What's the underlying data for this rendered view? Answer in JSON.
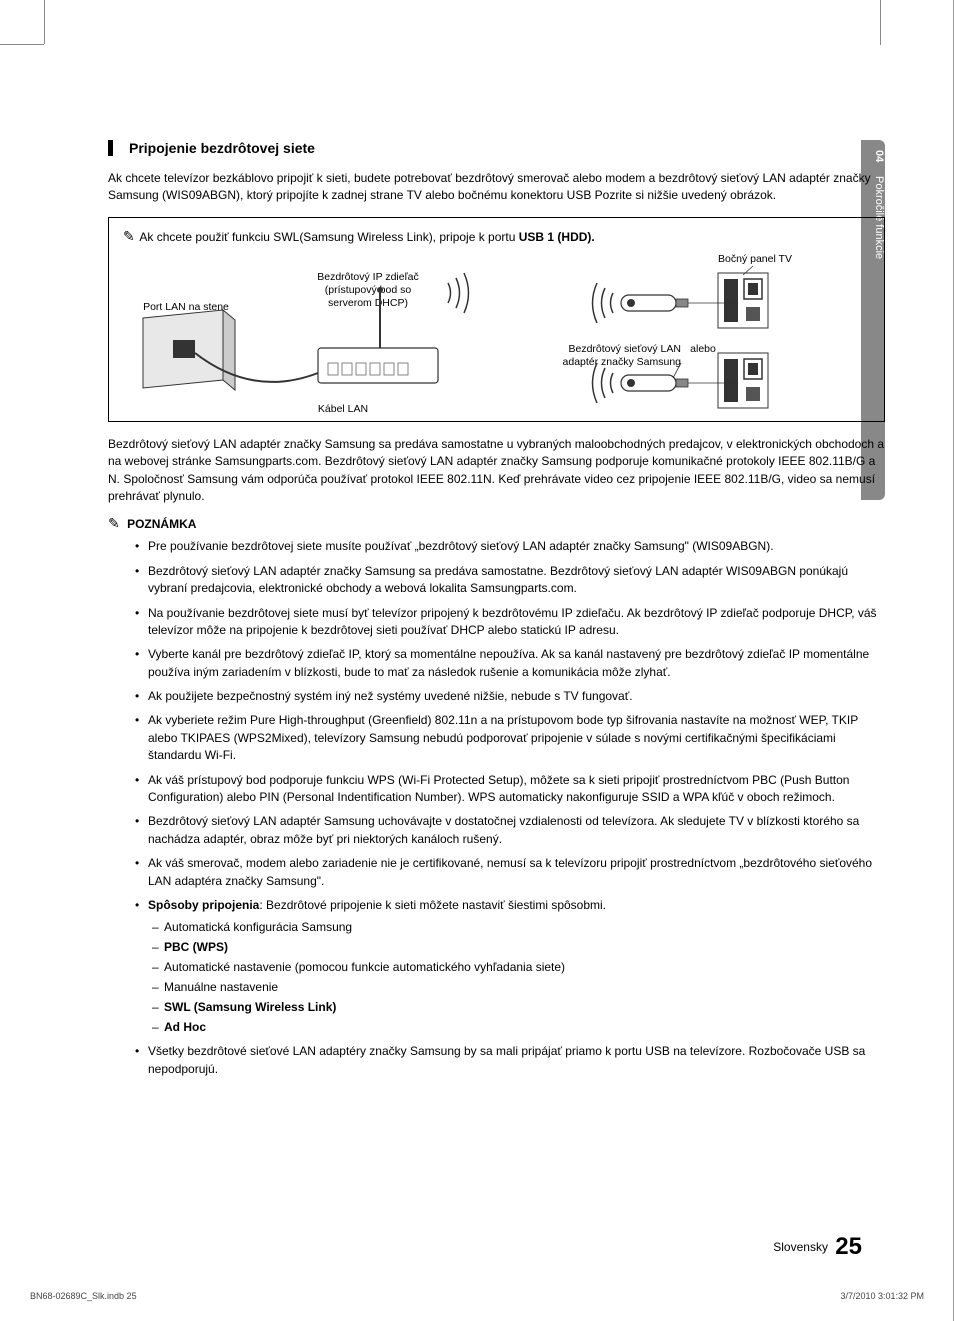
{
  "sideTab": {
    "chapter": "04",
    "title": "Pokročilé funkcie"
  },
  "section": {
    "title": "Pripojenie bezdrôtovej siete",
    "intro": "Ak chcete televízor bezkáblovo pripojiť k sieti, budete potrebovať bezdrôtový smerovač alebo modem a bezdrôtový sieťový LAN adaptér značky Samsung (WIS09ABGN), ktorý pripojíte k zadnej strane TV alebo bočnému konektoru USB Pozrite si nižšie uvedený obrázok."
  },
  "diagram": {
    "noteText": "Ak chcete použiť funkciu SWL(Samsung Wireless Link), pripoje k portu ",
    "noteBold": "USB 1 (HDD).",
    "labels": {
      "portLan": "Port LAN na stene",
      "routerLine1": "Bezdrôtový IP zdieľač",
      "routerLine2": "(prístupový bod so",
      "routerLine3": "serverom DHCP)",
      "lanCable": "Kábel LAN",
      "adapterLine1": "Bezdrôtový sieťový LAN",
      "adapterLine2": "adaptér značky Samsung",
      "or": "alebo",
      "tvPanel": "Bočný panel TV"
    }
  },
  "afterDiagram": "Bezdrôtový sieťový LAN adaptér značky Samsung sa predáva samostatne u vybraných maloobchodných predajcov, v elektronických obchodoch a na webovej stránke Samsungparts.com. Bezdrôtový sieťový LAN adaptér značky Samsung podporuje komunikačné protokoly IEEE 802.11B/G a N. Spoločnosť Samsung vám odporúča používať protokol IEEE 802.11N. Keď prehrávate video cez pripojenie IEEE 802.11B/G, video sa nemusí prehrávať plynulo.",
  "noteHeader": "POZNÁMKA",
  "notes": [
    {
      "text": "Pre používanie bezdrôtovej siete musíte používať „bezdrôtový sieťový LAN adaptér značky Samsung\" (WIS09ABGN)."
    },
    {
      "text": "Bezdrôtový sieťový LAN adaptér značky Samsung sa predáva samostatne. Bezdrôtový sieťový LAN adaptér WIS09ABGN ponúkajú vybraní predajcovia, elektronické obchody a webová lokalita Samsungparts.com."
    },
    {
      "text": "Na používanie bezdrôtovej siete musí byť televízor pripojený k bezdrôtovému IP zdieľaču. Ak bezdrôtový IP zdieľač podporuje DHCP, váš televízor môže na pripojenie k bezdrôtovej sieti používať DHCP alebo statickú IP adresu."
    },
    {
      "text": "Vyberte kanál pre bezdrôtový zdieľač IP, ktorý sa momentálne nepoužíva. Ak sa kanál nastavený pre bezdrôtový zdieľač IP momentálne používa iným zariadením v blízkosti, bude to mať za následok rušenie a komunikácia môže zlyhať."
    },
    {
      "text": "Ak použijete bezpečnostný systém iný než systémy uvedené nižšie, nebude s TV fungovať."
    },
    {
      "text": "Ak vyberiete režim Pure High-throughput (Greenfield) 802.11n a na prístupovom bode typ šifrovania nastavíte na možnosť WEP, TKIP alebo TKIPAES (WPS2Mixed), televízory Samsung nebudú podporovať pripojenie v súlade s novými certifikačnými špecifikáciami štandardu Wi-Fi."
    },
    {
      "text": "Ak váš prístupový bod podporuje funkciu WPS (Wi-Fi Protected Setup), môžete sa k sieti pripojiť prostredníctvom PBC (Push Button Configuration) alebo PIN (Personal Indentification Number). WPS automaticky nakonfiguruje SSID a WPA kľúč v oboch režimoch."
    },
    {
      "text": "Bezdrôtový sieťový LAN adaptér Samsung uchovávajte v dostatočnej vzdialenosti od televízora. Ak sledujete TV v blízkosti ktorého sa nachádza adaptér, obraz môže byť pri niektorých kanáloch rušený."
    },
    {
      "text": "Ak váš smerovač, modem alebo zariadenie nie je certifikované, nemusí sa k televízoru pripojiť prostredníctvom „bezdrôtového sieťového LAN adaptéra značky Samsung\"."
    },
    {
      "boldPrefix": "Spôsoby pripojenia",
      "text": ": Bezdrôtové pripojenie k sieti môžete nastaviť šiestimi spôsobmi.",
      "sub": [
        {
          "text": "Automatická konfigurácia Samsung"
        },
        {
          "bold": true,
          "text": "PBC (WPS)"
        },
        {
          "text": "Automatické nastavenie (pomocou funkcie automatického vyhľadania siete)"
        },
        {
          "text": "Manuálne nastavenie"
        },
        {
          "bold": true,
          "text": "SWL (Samsung Wireless Link)"
        },
        {
          "bold": true,
          "text": "Ad Hoc"
        }
      ]
    },
    {
      "text": "Všetky bezdrôtové sieťové LAN adaptéry značky Samsung by sa mali pripájať priamo k portu USB na televízore. Rozbočovače USB sa nepodporujú."
    }
  ],
  "footer": {
    "lang": "Slovensky",
    "pageNum": "25",
    "docLeft": "BN68-02689C_Slk.indb   25",
    "docRight": "3/7/2010   3:01:32 PM"
  }
}
